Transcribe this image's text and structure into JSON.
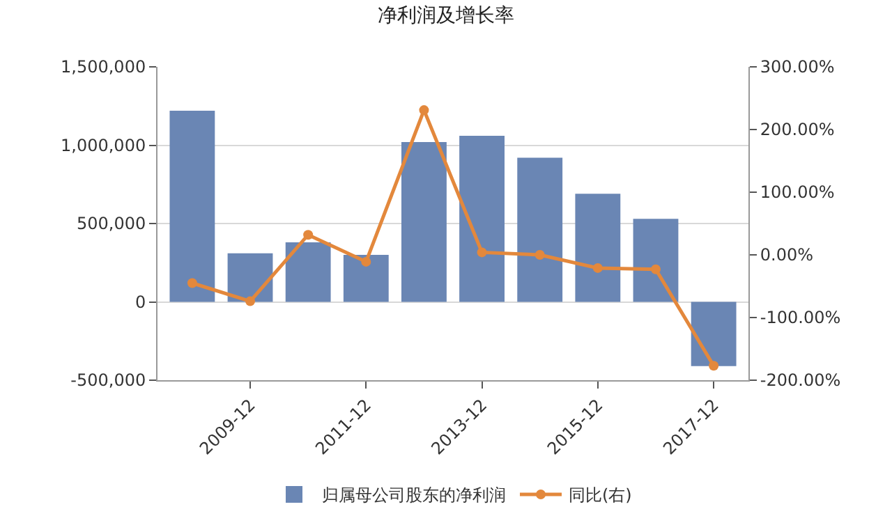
{
  "chart_data": {
    "type": "bar",
    "title": "净利润及增长率",
    "categories": [
      null,
      "2009-12",
      null,
      "2011-12",
      null,
      "2013-12",
      null,
      "2015-12",
      null,
      "2017-12"
    ],
    "series": [
      {
        "name": "归属母公司股东的净利润",
        "color": "#6a86b4",
        "values": [
          1220000,
          310000,
          380000,
          300000,
          1020000,
          1060000,
          920000,
          690000,
          530000,
          -410000
        ]
      },
      {
        "name": "同比(右)",
        "type": "line",
        "axis": "y2",
        "color": "#e3883c",
        "marker": "circle",
        "values": [
          -45,
          -74,
          32,
          -11,
          231,
          4,
          0,
          -21,
          -23,
          -177
        ]
      }
    ],
    "ylim": [
      -500000,
      1500000
    ],
    "yticks": [
      {
        "value": -500000,
        "label": "-500,000"
      },
      0,
      {
        "value": 500000,
        "label": "500,000"
      },
      {
        "value": 1000000,
        "label": "1,000,000"
      },
      {
        "value": 1500000,
        "label": "1,500,000"
      }
    ],
    "y2lim": [
      -200,
      300
    ],
    "y2ticks": [
      {
        "value": -200,
        "label": "-200.00%"
      },
      {
        "value": -100,
        "label": "-100.00%"
      },
      {
        "value": 0,
        "label": "0.00%"
      },
      {
        "value": 100,
        "label": "100.00%"
      },
      {
        "value": 200,
        "label": "200.00%"
      },
      {
        "value": 300,
        "label": "300.00%"
      }
    ],
    "grid": "y",
    "legend": "bottom"
  }
}
